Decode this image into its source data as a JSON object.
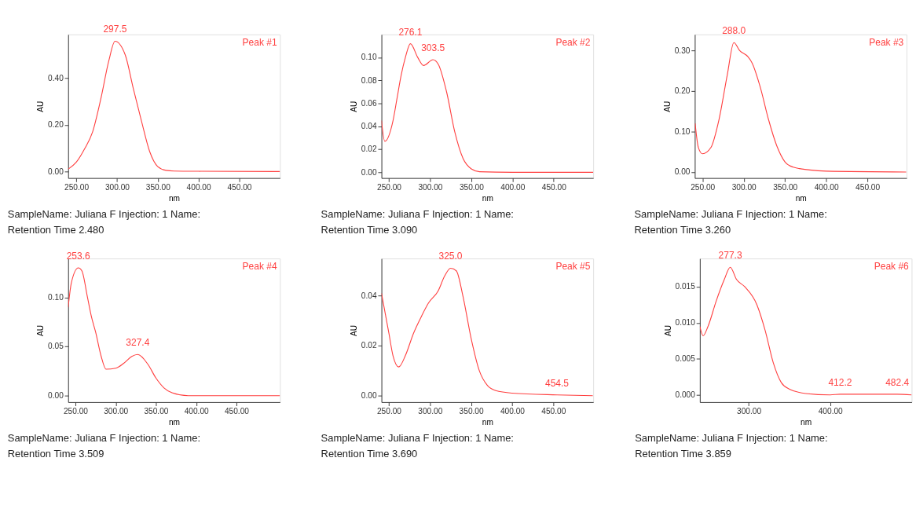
{
  "chart_data": [
    {
      "type": "line",
      "xlabel": "nm",
      "ylabel": "AU",
      "grid": false,
      "xlim": [
        240,
        500
      ],
      "ylim": [
        -0.028,
        0.587
      ],
      "xticks": [
        {
          "value": 250,
          "label": "250.00"
        },
        {
          "value": 300,
          "label": "300.00"
        },
        {
          "value": 350,
          "label": "350.00"
        },
        {
          "value": 400,
          "label": "400.00"
        },
        {
          "value": 450,
          "label": "450.00"
        }
      ],
      "yticks": [
        {
          "value": 0,
          "label": "0.00"
        },
        {
          "value": 0.2,
          "label": "0.20"
        },
        {
          "value": 0.4,
          "label": "0.40"
        }
      ],
      "series": [
        {
          "color": "#ff4040",
          "x": [
            240,
            250,
            260,
            270,
            280,
            290,
            297.5,
            310,
            320,
            330,
            340,
            350,
            360,
            370,
            400,
            500
          ],
          "values": [
            0.01,
            0.04,
            0.096,
            0.17,
            0.31,
            0.476,
            0.558,
            0.5,
            0.355,
            0.216,
            0.086,
            0.021,
            0.005,
            0.002,
            0.001,
            0.0
          ]
        }
      ],
      "annotations": [
        {
          "text": "297.5",
          "x": 297.5,
          "y": 0.558
        },
        "Peak #1",
        "SampleName: Juliana F Injection: 1 Name:",
        "Retention Time 2.480"
      ]
    },
    {
      "type": "line",
      "xlabel": "nm",
      "ylabel": "AU",
      "grid": false,
      "xlim": [
        241,
        498
      ],
      "ylim": [
        -0.005,
        0.12
      ],
      "xticks": [
        {
          "value": 250,
          "label": "250.00"
        },
        {
          "value": 300,
          "label": "300.00"
        },
        {
          "value": 350,
          "label": "350.00"
        },
        {
          "value": 400,
          "label": "400.00"
        },
        {
          "value": 450,
          "label": "450.00"
        }
      ],
      "yticks": [
        {
          "value": 0,
          "label": "0.00"
        },
        {
          "value": 0.02,
          "label": "0.02"
        },
        {
          "value": 0.04,
          "label": "0.04"
        },
        {
          "value": 0.06,
          "label": "0.06"
        },
        {
          "value": 0.08,
          "label": "0.08"
        },
        {
          "value": 0.1,
          "label": "0.10"
        }
      ],
      "series": [
        {
          "color": "#ff4040",
          "x": [
            241,
            245,
            255,
            260,
            265,
            270,
            276.1,
            285,
            292,
            303.5,
            310,
            320,
            330,
            340,
            350,
            360,
            400,
            498
          ],
          "values": [
            0.045,
            0.027,
            0.045,
            0.065,
            0.085,
            0.1,
            0.112,
            0.1,
            0.093,
            0.098,
            0.094,
            0.07,
            0.035,
            0.012,
            0.003,
            0.0005,
            0.0,
            0.0
          ]
        }
      ],
      "annotations": [
        {
          "text": "276.1",
          "x": 276.1,
          "y": 0.112
        },
        {
          "text": "303.5",
          "x": 303.5,
          "y": 0.098
        },
        "Peak #2",
        "SampleName: Juliana F Injection: 1 Name:",
        "Retention Time 3.090"
      ]
    },
    {
      "type": "line",
      "xlabel": "nm",
      "ylabel": "AU",
      "grid": false,
      "xlim": [
        240.6,
        497.5
      ],
      "ylim": [
        -0.015,
        0.34
      ],
      "xticks": [
        {
          "value": 250,
          "label": "250.00"
        },
        {
          "value": 300,
          "label": "300.00"
        },
        {
          "value": 350,
          "label": "350.00"
        },
        {
          "value": 400,
          "label": "400.00"
        },
        {
          "value": 450,
          "label": "450.00"
        }
      ],
      "yticks": [
        {
          "value": 0,
          "label": "0.00"
        },
        {
          "value": 0.1,
          "label": "0.10"
        },
        {
          "value": 0.2,
          "label": "0.20"
        },
        {
          "value": 0.3,
          "label": "0.30"
        }
      ],
      "series": [
        {
          "color": "#ff4040",
          "x": [
            241,
            245,
            250,
            260,
            270,
            280,
            288,
            295,
            305,
            310,
            320,
            330,
            340,
            350,
            360,
            380,
            400,
            497
          ],
          "values": [
            0.12,
            0.06,
            0.045,
            0.06,
            0.13,
            0.24,
            0.32,
            0.3,
            0.285,
            0.27,
            0.21,
            0.13,
            0.065,
            0.025,
            0.012,
            0.005,
            0.002,
            0.0
          ]
        }
      ],
      "annotations": [
        {
          "text": "288.0",
          "x": 288.0,
          "y": 0.32
        },
        "Peak #3",
        "SampleName: Juliana F Injection: 1 Name:",
        "Retention Time 3.260"
      ]
    },
    {
      "type": "line",
      "xlabel": "nm",
      "ylabel": "AU",
      "grid": false,
      "xlim": [
        241,
        504
      ],
      "ylim": [
        -0.0065,
        0.1395
      ],
      "xticks": [
        {
          "value": 250,
          "label": "250.00"
        },
        {
          "value": 300,
          "label": "300.00"
        },
        {
          "value": 350,
          "label": "350.00"
        },
        {
          "value": 400,
          "label": "400.00"
        },
        {
          "value": 450,
          "label": "450.00"
        }
      ],
      "yticks": [
        {
          "value": 0,
          "label": "0.00"
        },
        {
          "value": 0.05,
          "label": "0.05"
        },
        {
          "value": 0.1,
          "label": "0.10"
        }
      ],
      "series": [
        {
          "color": "#ff4040",
          "x": [
            241,
            245,
            253.6,
            258,
            265,
            270,
            275,
            282,
            288,
            300,
            310,
            320,
            327.4,
            340,
            350,
            360,
            370,
            390,
            504
          ],
          "values": [
            0.09,
            0.115,
            0.13,
            0.127,
            0.1,
            0.08,
            0.065,
            0.04,
            0.027,
            0.028,
            0.033,
            0.04,
            0.042,
            0.032,
            0.018,
            0.008,
            0.003,
            0.0,
            0.0
          ]
        }
      ],
      "annotations": [
        {
          "text": "253.6",
          "x": 253.6,
          "y": 0.13
        },
        {
          "text": "327.4",
          "x": 327.4,
          "y": 0.042
        },
        "Peak #4",
        "SampleName: Juliana F Injection: 1 Name:",
        "Retention Time 3.509"
      ]
    },
    {
      "type": "line",
      "xlabel": "nm",
      "ylabel": "AU",
      "grid": false,
      "xlim": [
        241,
        498.6
      ],
      "ylim": [
        -0.0026,
        0.0549
      ],
      "xticks": [
        {
          "value": 250,
          "label": "250.00"
        },
        {
          "value": 300,
          "label": "300.00"
        },
        {
          "value": 350,
          "label": "350.00"
        },
        {
          "value": 400,
          "label": "400.00"
        },
        {
          "value": 450,
          "label": "450.00"
        }
      ],
      "yticks": [
        {
          "value": 0,
          "label": "0.00"
        },
        {
          "value": 0.02,
          "label": "0.02"
        },
        {
          "value": 0.04,
          "label": "0.04"
        }
      ],
      "series": [
        {
          "color": "#ff4040",
          "x": [
            241,
            250,
            255,
            262,
            270,
            280,
            290,
            298,
            310,
            318,
            325,
            332,
            340,
            350,
            360,
            370,
            380,
            400,
            454.5,
            498
          ],
          "values": [
            0.041,
            0.025,
            0.016,
            0.0115,
            0.016,
            0.025,
            0.032,
            0.037,
            0.042,
            0.048,
            0.051,
            0.05,
            0.04,
            0.023,
            0.01,
            0.004,
            0.002,
            0.001,
            0.0003,
            0.0
          ]
        }
      ],
      "annotations": [
        {
          "text": "325.0",
          "x": 325.0,
          "y": 0.051
        },
        {
          "text": "454.5",
          "x": 454.5,
          "y": 0.0003
        },
        "Peak #5",
        "SampleName: Juliana F Injection: 1 Name:",
        "Retention Time 3.690"
      ]
    },
    {
      "type": "line",
      "xlabel": "nm",
      "ylabel": "AU",
      "grid": false,
      "xlim": [
        240,
        500
      ],
      "ylim": [
        -0.001,
        0.0189
      ],
      "xticks": [
        {
          "value": 300,
          "label": "300.00"
        },
        {
          "value": 400,
          "label": "400.00"
        }
      ],
      "yticks": [
        {
          "value": 0,
          "label": "0.000"
        },
        {
          "value": 0.005,
          "label": "0.005"
        },
        {
          "value": 0.01,
          "label": "0.010"
        },
        {
          "value": 0.015,
          "label": "0.015"
        }
      ],
      "series": [
        {
          "color": "#ff4040",
          "x": [
            240,
            244,
            250,
            260,
            270,
            277.3,
            285,
            295,
            310,
            320,
            330,
            340,
            350,
            370,
            400,
            412.2,
            482.4,
            500
          ],
          "values": [
            0.0095,
            0.0082,
            0.0095,
            0.013,
            0.016,
            0.0177,
            0.016,
            0.015,
            0.0125,
            0.009,
            0.0045,
            0.0017,
            0.0008,
            0.0002,
            0.0,
            0.0001,
            0.0001,
            0.0
          ]
        }
      ],
      "annotations": [
        {
          "text": "277.3",
          "x": 277.3,
          "y": 0.0177
        },
        {
          "text": "412.2",
          "x": 412.2,
          "y": 0.0001
        },
        {
          "text": "482.4",
          "x": 482.4,
          "y": 0.0001
        },
        "Peak #6",
        "SampleName: Juliana F Injection: 1 Name:",
        "Retention Time 3.859"
      ]
    }
  ]
}
